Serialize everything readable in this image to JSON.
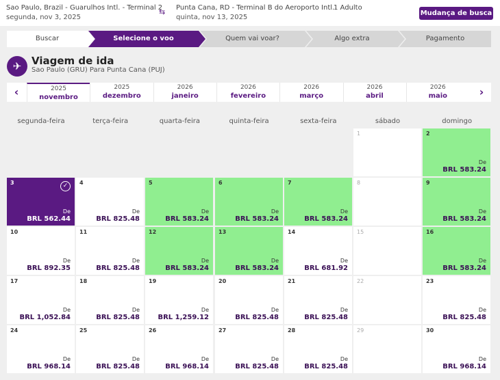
{
  "header": {
    "origin": "Sao Paulo, Brazil - Guarulhos Intl. - Terminal 2",
    "origin_date": "segunda, nov 3, 2025",
    "destination": "Punta Cana, RD - Terminal B do Aeroporto Intl.",
    "destination_date": "quinta, nov 13, 2025",
    "passengers": "1 Adulto",
    "change_search_label": "Mudança de busca"
  },
  "steps": [
    "Buscar",
    "Selecione o voo",
    "Quem vai voar?",
    "Algo extra",
    "Pagamento"
  ],
  "active_step": 1,
  "trip": {
    "title": "Viagem de ida",
    "subtitle": "Sao Paulo (GRU) Para Punta Cana (PUJ)"
  },
  "months": [
    {
      "year": "2025",
      "month": "novembro",
      "selected": true
    },
    {
      "year": "2025",
      "month": "dezembro",
      "selected": false
    },
    {
      "year": "2026",
      "month": "janeiro",
      "selected": false
    },
    {
      "year": "2026",
      "month": "fevereiro",
      "selected": false
    },
    {
      "year": "2026",
      "month": "março",
      "selected": false
    },
    {
      "year": "2026",
      "month": "abril",
      "selected": false
    },
    {
      "year": "2026",
      "month": "maio",
      "selected": false
    }
  ],
  "weekdays": [
    "segunda-feira",
    "terça-feira",
    "quarta-feira",
    "quinta-feira",
    "sexta-feira",
    "sábado",
    "domingo"
  ],
  "price_prefix": "De",
  "days": [
    {
      "day": "1",
      "price": "",
      "status": "muted"
    },
    {
      "day": "2",
      "price": "BRL 583.24",
      "status": "green"
    },
    {
      "day": "3",
      "price": "BRL 562.44",
      "status": "selected"
    },
    {
      "day": "4",
      "price": "BRL 825.48",
      "status": "normal"
    },
    {
      "day": "5",
      "price": "BRL 583.24",
      "status": "green"
    },
    {
      "day": "6",
      "price": "BRL 583.24",
      "status": "green"
    },
    {
      "day": "7",
      "price": "BRL 583.24",
      "status": "green"
    },
    {
      "day": "8",
      "price": "",
      "status": "muted"
    },
    {
      "day": "9",
      "price": "BRL 583.24",
      "status": "green"
    },
    {
      "day": "10",
      "price": "BRL 892.35",
      "status": "normal"
    },
    {
      "day": "11",
      "price": "BRL 825.48",
      "status": "normal"
    },
    {
      "day": "12",
      "price": "BRL 583.24",
      "status": "green"
    },
    {
      "day": "13",
      "price": "BRL 583.24",
      "status": "green"
    },
    {
      "day": "14",
      "price": "BRL 681.92",
      "status": "normal"
    },
    {
      "day": "15",
      "price": "",
      "status": "muted"
    },
    {
      "day": "16",
      "price": "BRL 583.24",
      "status": "green"
    },
    {
      "day": "17",
      "price": "BRL 1,052.84",
      "status": "normal"
    },
    {
      "day": "18",
      "price": "BRL 825.48",
      "status": "normal"
    },
    {
      "day": "19",
      "price": "BRL 1,259.12",
      "status": "normal"
    },
    {
      "day": "20",
      "price": "BRL 825.48",
      "status": "normal"
    },
    {
      "day": "21",
      "price": "BRL 825.48",
      "status": "normal"
    },
    {
      "day": "22",
      "price": "",
      "status": "muted"
    },
    {
      "day": "23",
      "price": "BRL 825.48",
      "status": "normal"
    },
    {
      "day": "24",
      "price": "BRL 968.14",
      "status": "normal"
    },
    {
      "day": "25",
      "price": "BRL 825.48",
      "status": "normal"
    },
    {
      "day": "26",
      "price": "BRL 968.14",
      "status": "normal"
    },
    {
      "day": "27",
      "price": "BRL 825.48",
      "status": "normal"
    },
    {
      "day": "28",
      "price": "BRL 825.48",
      "status": "normal"
    },
    {
      "day": "29",
      "price": "",
      "status": "muted"
    },
    {
      "day": "30",
      "price": "BRL 968.14",
      "status": "normal"
    }
  ],
  "first_weekday_offset": 5,
  "colors": {
    "brand": "#5a1a82",
    "cheapest": "#90ee90",
    "step_inactive": "#d6d6d6",
    "step_done": "#ffffff"
  },
  "icons": {
    "swap": "swap-arrows-icon",
    "plane": "airplane-takeoff-icon",
    "check": "check-circle-icon",
    "prev": "chevron-left-icon",
    "next": "chevron-right-icon"
  }
}
